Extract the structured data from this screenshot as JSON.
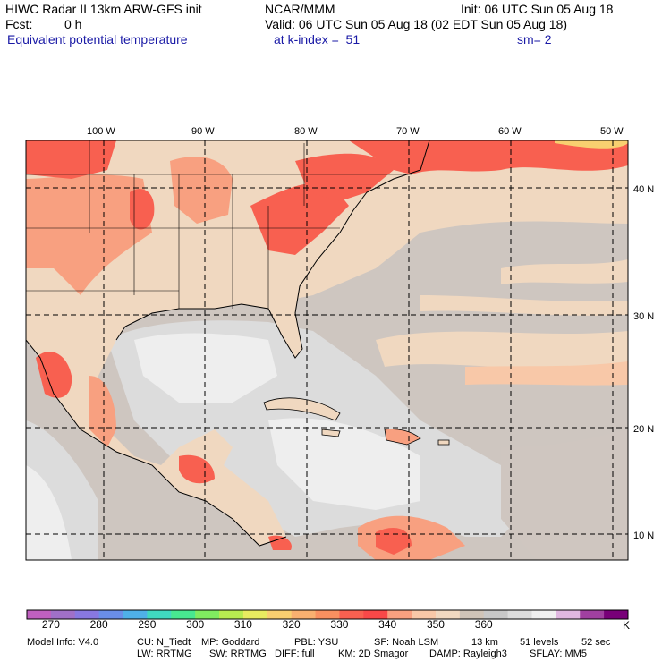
{
  "header": {
    "title": "HIWC Radar II 13km ARW-GFS init",
    "org": "NCAR/MMM",
    "init": "Init: 06 UTC Sun 05 Aug 18",
    "fcst_label": "Fcst:",
    "fcst_value": "0 h",
    "valid": "Valid: 06 UTC Sun 05 Aug 18 (02 EDT Sun 05 Aug 18)",
    "field": "Equivalent potential temperature",
    "level": "at k-index =  51",
    "smooth": "sm= 2"
  },
  "map": {
    "lon_labels": [
      "100 W",
      "90 W",
      "80 W",
      "70 W",
      "60 W",
      "50 W"
    ],
    "lat_labels": [
      "40 N",
      "30 N",
      "20 N",
      "10 N"
    ]
  },
  "colorbar": {
    "unit": "K",
    "tick_labels": [
      "270",
      "280",
      "290",
      "300",
      "310",
      "320",
      "330",
      "340",
      "350",
      "360"
    ],
    "colors": [
      "#c060c0",
      "#a070c8",
      "#8878e0",
      "#6a8ee8",
      "#4fb0e8",
      "#40d8c0",
      "#48e890",
      "#80ec60",
      "#b8ec50",
      "#e8ec60",
      "#f8d070",
      "#f8b070",
      "#f89060",
      "#f86050",
      "#f84848",
      "#f8a080",
      "#f8c8a8",
      "#f0d8c0",
      "#d0c4b8",
      "#c8c8c8",
      "#dcdcdc",
      "#f0f0f0",
      "#e0b8e0",
      "#a040a0",
      "#780078"
    ]
  },
  "footer": {
    "line1": [
      "Model Info: V4.0",
      "CU: N_Tiedt",
      "MP: Goddard",
      "PBL: YSU",
      "SF: Noah LSM",
      "13 km",
      "51 levels",
      "52 sec"
    ],
    "line2": [
      "LW: RRTMG",
      "SW: RRTMG",
      "DIFF: full",
      "KM: 2D Smagor",
      "DAMP: Rayleigh3",
      "SFLAY: MM5"
    ]
  }
}
